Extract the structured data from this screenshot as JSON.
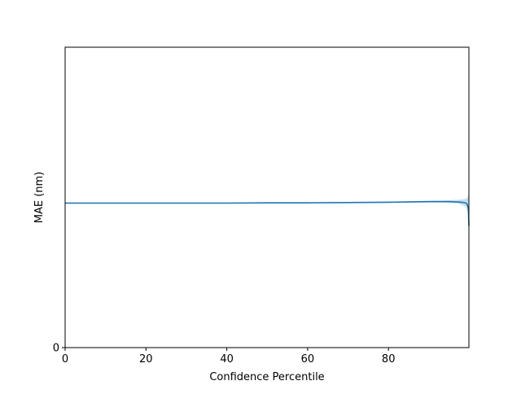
{
  "chart_data": {
    "type": "line",
    "xlabel": "Confidence Percentile",
    "ylabel": "MAE (nm)",
    "xlim": [
      0,
      99.9
    ],
    "ylim": [
      0,
      1
    ],
    "x_ticks": [
      0,
      20,
      40,
      60,
      80
    ],
    "y_ticks": [
      0
    ],
    "grid": false,
    "series": [
      {
        "color": "#1f77b4",
        "x": [
          0,
          10,
          20,
          30,
          40,
          50,
          60,
          70,
          80,
          85,
          90,
          93,
          95,
          97,
          98,
          98.5,
          99,
          99.3,
          99.5,
          99.7,
          99.8,
          99.9
        ],
        "y": [
          0.481,
          0.481,
          0.481,
          0.481,
          0.481,
          0.482,
          0.482,
          0.483,
          0.484,
          0.485,
          0.486,
          0.486,
          0.486,
          0.485,
          0.484,
          0.483,
          0.482,
          0.48,
          0.476,
          0.466,
          0.45,
          0.405
        ],
        "band_lower": [
          0.479,
          0.479,
          0.479,
          0.479,
          0.479,
          0.48,
          0.48,
          0.481,
          0.482,
          0.483,
          0.483,
          0.483,
          0.482,
          0.48,
          0.476,
          0.473,
          0.47,
          0.466,
          0.46,
          0.45,
          0.43,
          0.405
        ],
        "band_upper": [
          0.483,
          0.483,
          0.483,
          0.483,
          0.483,
          0.484,
          0.484,
          0.485,
          0.486,
          0.487,
          0.489,
          0.49,
          0.491,
          0.492,
          0.493,
          0.494,
          0.495,
          0.496,
          0.5,
          0.505,
          0.51,
          0.515
        ]
      }
    ]
  }
}
